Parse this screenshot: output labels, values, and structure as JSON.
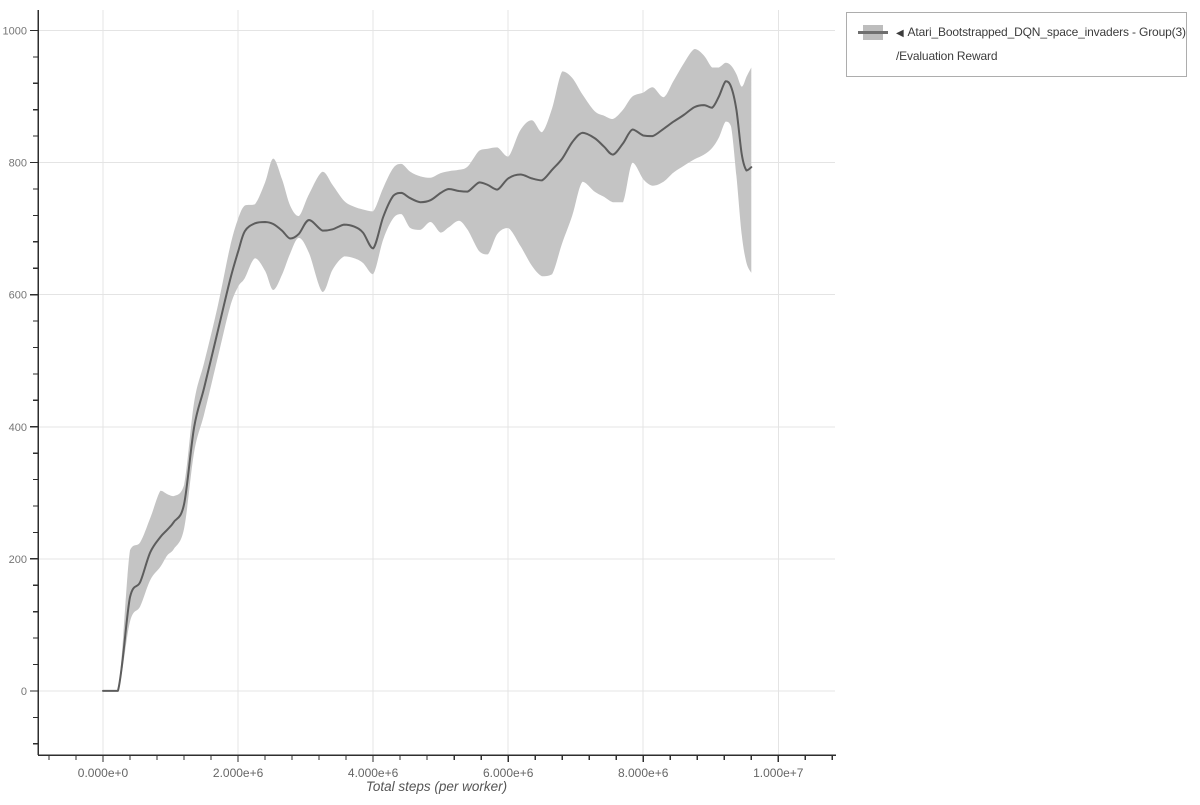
{
  "chart_data": {
    "type": "line",
    "title": "",
    "xlabel": "Total steps (per worker)",
    "ylabel": "",
    "grid": "major gridlines only",
    "legend": {
      "position": "outside top-right",
      "collapse_icon": "◀",
      "series_name": "Atari_Bootstrapped_DQN_space_invaders - Group(3)",
      "metric_name": "/Evaluation Reward"
    },
    "x_tick_labels": [
      "0.000e+0",
      "2.000e+6",
      "4.000e+6",
      "6.000e+6",
      "8.000e+6",
      "1.000e+7"
    ],
    "x_tick_values_millions": [
      0,
      2,
      4,
      6,
      8,
      10
    ],
    "x_minor_step_millions": 0.4,
    "x_minor_range_millions": [
      -0.8,
      10.8
    ],
    "x_range_millions": [
      -0.963,
      10.84
    ],
    "y_tick_labels": [
      "0",
      "200",
      "400",
      "600",
      "800",
      "1000"
    ],
    "y_tick_values": [
      0,
      200,
      400,
      600,
      800,
      1000
    ],
    "y_minor_step": 40,
    "y_minor_range": [
      -80,
      1000
    ],
    "y_range": [
      -97,
      1031
    ],
    "series": [
      {
        "name": "Atari_Bootstrapped_DQN_space_invaders - Group(3)/Evaluation Reward",
        "x_millions": [
          0.0,
          0.22,
          0.4,
          0.55,
          0.7,
          0.85,
          0.95,
          1.05,
          1.2,
          1.35,
          1.5,
          1.7,
          1.88,
          2.0,
          2.1,
          2.25,
          2.4,
          2.52,
          2.65,
          2.77,
          2.9,
          3.05,
          3.25,
          3.4,
          3.57,
          3.72,
          3.85,
          4.0,
          4.15,
          4.3,
          4.42,
          4.55,
          4.7,
          4.85,
          5.0,
          5.12,
          5.27,
          5.4,
          5.57,
          5.7,
          5.84,
          6.0,
          6.18,
          6.35,
          6.5,
          6.65,
          6.8,
          6.95,
          7.1,
          7.28,
          7.42,
          7.55,
          7.7,
          7.84,
          8.0,
          8.14,
          8.3,
          8.45,
          8.6,
          8.76,
          8.9,
          9.02,
          9.12,
          9.22,
          9.3,
          9.38,
          9.46,
          9.53,
          9.6
        ],
        "mean": [
          0,
          0,
          142,
          165,
          210,
          233,
          244,
          256,
          283,
          400,
          460,
          545,
          622,
          665,
          696,
          708,
          710,
          707,
          697,
          685,
          692,
          713,
          697,
          699,
          706,
          703,
          694,
          670,
          718,
          750,
          754,
          746,
          740,
          743,
          754,
          760,
          757,
          756,
          770,
          766,
          759,
          776,
          782,
          776,
          773,
          789,
          806,
          831,
          845,
          837,
          824,
          812,
          829,
          850,
          841,
          840,
          851,
          862,
          872,
          884,
          887,
          883,
          900,
          923,
          915,
          880,
          812,
          788,
          793
        ],
        "band_lower": [
          0,
          0,
          105,
          128,
          168,
          188,
          205,
          215,
          246,
          362,
          420,
          505,
          581,
          612,
          625,
          655,
          636,
          607,
          630,
          662,
          686,
          663,
          604,
          638,
          658,
          655,
          648,
          631,
          684,
          716,
          722,
          701,
          698,
          710,
          694,
          702,
          712,
          698,
          666,
          661,
          692,
          701,
          674,
          644,
          628,
          631,
          678,
          720,
          771,
          756,
          748,
          740,
          740,
          800,
          775,
          765,
          771,
          785,
          795,
          805,
          812,
          822,
          838,
          862,
          855,
          780,
          690,
          648,
          633
        ],
        "band_upper": [
          0,
          0,
          213,
          225,
          262,
          303,
          298,
          295,
          312,
          438,
          498,
          583,
          672,
          715,
          735,
          737,
          770,
          806,
          775,
          735,
          719,
          752,
          786,
          766,
          742,
          733,
          729,
          726,
          762,
          792,
          798,
          786,
          779,
          777,
          784,
          787,
          789,
          794,
          818,
          821,
          823,
          809,
          849,
          864,
          846,
          882,
          938,
          928,
          903,
          878,
          871,
          866,
          880,
          900,
          906,
          914,
          899,
          924,
          950,
          972,
          962,
          944,
          944,
          951,
          947,
          934,
          915,
          930,
          944
        ]
      }
    ],
    "colors": {
      "mean_line": "#5d5d5d",
      "band": "#c4c4c4",
      "grid": "#e4e4e4",
      "axis": "#2e2e2e",
      "y_tick_label": "#767676",
      "x_tick_label": "#666666",
      "axis_title": "#555555",
      "legend_border": "#adadad",
      "legend_text": "#3c3c3c",
      "legend_swatch_band": "#bdbdbd",
      "legend_swatch_line": "#6f6f6f",
      "background": "#ffffff"
    }
  }
}
